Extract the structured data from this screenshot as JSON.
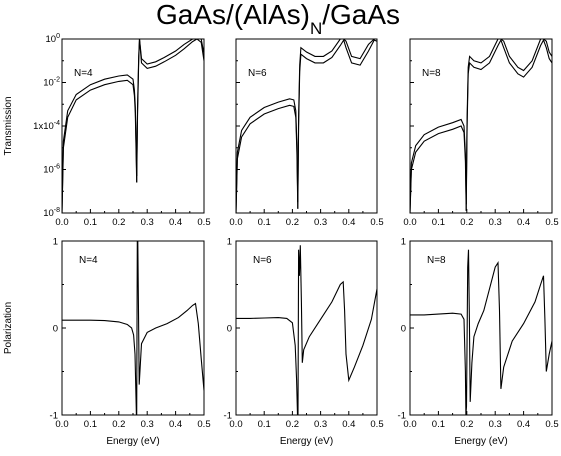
{
  "title": {
    "main": "GaAs/(AlAs)",
    "sub": "N",
    "tail": "/GaAs"
  },
  "chart_data": [
    {
      "type": "line",
      "row": "transmission",
      "label": "N=4",
      "xlim": [
        0,
        0.5
      ],
      "ylim_log10": [
        -8,
        0
      ],
      "yscale": "log",
      "xticks": [
        "0.0",
        "0.1",
        "0.2",
        "0.3",
        "0.4",
        "0.5"
      ],
      "yticks": [
        {
          "exp": 0,
          "label": "10^0"
        },
        {
          "exp": -2,
          "label": "10^-2"
        },
        {
          "exp": -4,
          "label": "1x10^-4"
        },
        {
          "exp": -6,
          "label": "10^-6"
        },
        {
          "exp": -8,
          "label": "10^-8"
        }
      ],
      "ylabel": "Transmission",
      "xlabel": "",
      "series": [
        {
          "x": [
            0.0,
            0.005,
            0.02,
            0.05,
            0.1,
            0.15,
            0.2,
            0.23,
            0.25,
            0.255,
            0.258,
            0.261,
            0.263
          ],
          "log10y": [
            -8,
            -5.0,
            -3.6,
            -2.8,
            -2.35,
            -2.1,
            -1.95,
            -1.9,
            -2.1,
            -2.6,
            -3.4,
            -5.2,
            -6.6
          ]
        },
        {
          "x": [
            0.0,
            0.005,
            0.02,
            0.05,
            0.1,
            0.15,
            0.2,
            0.23,
            0.25,
            0.255,
            0.258,
            0.261,
            0.263
          ],
          "log10y": [
            -8,
            -4.7,
            -3.3,
            -2.55,
            -2.1,
            -1.85,
            -1.7,
            -1.65,
            -1.85,
            -2.35,
            -3.1,
            -4.9,
            -6.3
          ]
        },
        {
          "x": [
            0.263,
            0.266,
            0.27,
            0.273,
            0.28,
            0.3,
            0.33,
            0.36,
            0.4,
            0.43,
            0.46,
            0.475,
            0.49,
            0.5
          ],
          "log10y": [
            -6.6,
            -3.6,
            -1.0,
            0,
            -1.1,
            -1.35,
            -1.25,
            -1.05,
            -0.75,
            -0.45,
            -0.12,
            0,
            -0.15,
            -1.0
          ]
        },
        {
          "x": [
            0.263,
            0.266,
            0.27,
            0.273,
            0.28,
            0.3,
            0.33,
            0.36,
            0.4,
            0.43,
            0.46,
            0.475,
            0.49,
            0.5
          ],
          "log10y": [
            -6.3,
            -3.2,
            -0.8,
            0,
            -0.9,
            -1.15,
            -1.05,
            -0.85,
            -0.55,
            -0.25,
            0,
            0,
            0,
            -0.7
          ]
        }
      ]
    },
    {
      "type": "line",
      "row": "transmission",
      "label": "N=6",
      "xlim": [
        0,
        0.5
      ],
      "ylim_log10": [
        -8,
        0
      ],
      "yscale": "log",
      "xticks": [
        "0.0",
        "0.1",
        "0.2",
        "0.3",
        "0.4",
        "0.5"
      ],
      "series": [
        {
          "x": [
            0.0,
            0.005,
            0.02,
            0.05,
            0.1,
            0.15,
            0.19,
            0.205,
            0.212,
            0.216,
            0.219
          ],
          "log10y": [
            -8,
            -5.5,
            -4.5,
            -3.9,
            -3.45,
            -3.2,
            -3.05,
            -3.1,
            -3.6,
            -5.2,
            -7.8
          ]
        },
        {
          "x": [
            0.0,
            0.005,
            0.02,
            0.05,
            0.1,
            0.15,
            0.19,
            0.205,
            0.212,
            0.216,
            0.219
          ],
          "log10y": [
            -8,
            -5.2,
            -4.2,
            -3.6,
            -3.15,
            -2.9,
            -2.75,
            -2.8,
            -3.3,
            -4.9,
            -7.5
          ]
        },
        {
          "x": [
            0.219,
            0.222,
            0.226,
            0.23,
            0.25,
            0.28,
            0.31,
            0.34,
            0.37,
            0.382,
            0.39,
            0.41,
            0.44,
            0.47,
            0.49,
            0.5
          ],
          "log10y": [
            -7.8,
            -4.0,
            -1.5,
            -0.7,
            -0.9,
            -1.1,
            -1.1,
            -0.85,
            -0.3,
            -0.05,
            -0.4,
            -1.1,
            -1.2,
            -0.55,
            -0.05,
            -0.1
          ]
        },
        {
          "x": [
            0.219,
            0.222,
            0.226,
            0.23,
            0.25,
            0.28,
            0.31,
            0.34,
            0.37,
            0.382,
            0.39,
            0.41,
            0.44,
            0.47,
            0.49,
            0.5
          ],
          "log10y": [
            -7.5,
            -3.6,
            -1.2,
            -0.4,
            -0.6,
            -0.8,
            -0.8,
            -0.55,
            0,
            0,
            -0.1,
            -0.8,
            -0.9,
            -0.25,
            0,
            0
          ]
        }
      ]
    },
    {
      "type": "line",
      "row": "transmission",
      "label": "N=8",
      "xlim": [
        0,
        0.5
      ],
      "ylim_log10": [
        -8,
        0
      ],
      "yscale": "log",
      "xticks": [
        "0.0",
        "0.1",
        "0.2",
        "0.3",
        "0.4",
        "0.5"
      ],
      "series": [
        {
          "x": [
            0.0,
            0.005,
            0.02,
            0.05,
            0.1,
            0.15,
            0.18,
            0.19,
            0.195,
            0.198
          ],
          "log10y": [
            -8,
            -6.0,
            -5.2,
            -4.7,
            -4.35,
            -4.15,
            -4.0,
            -4.3,
            -5.6,
            -7.9
          ]
        },
        {
          "x": [
            0.0,
            0.005,
            0.02,
            0.05,
            0.1,
            0.15,
            0.18,
            0.19,
            0.195,
            0.198
          ],
          "log10y": [
            -8,
            -5.7,
            -4.9,
            -4.4,
            -4.05,
            -3.85,
            -3.7,
            -4.0,
            -5.3,
            -7.6
          ]
        },
        {
          "x": [
            0.198,
            0.201,
            0.205,
            0.21,
            0.225,
            0.25,
            0.28,
            0.31,
            0.32,
            0.33,
            0.35,
            0.38,
            0.4,
            0.43,
            0.46,
            0.47,
            0.48,
            0.49,
            0.5
          ],
          "log10y": [
            -7.9,
            -4.0,
            -1.6,
            -1.1,
            -1.3,
            -1.4,
            -1.1,
            -0.3,
            -0.05,
            -0.4,
            -1.1,
            -1.6,
            -1.75,
            -1.3,
            -0.3,
            -0.05,
            -0.4,
            -0.9,
            -1.1
          ]
        },
        {
          "x": [
            0.198,
            0.201,
            0.205,
            0.21,
            0.225,
            0.25,
            0.28,
            0.31,
            0.32,
            0.33,
            0.35,
            0.38,
            0.4,
            0.43,
            0.46,
            0.47,
            0.48,
            0.49,
            0.5
          ],
          "log10y": [
            -7.6,
            -3.6,
            -1.3,
            -0.8,
            -1.0,
            -1.1,
            -0.8,
            0,
            0,
            -0.1,
            -0.8,
            -1.3,
            -1.45,
            -1.0,
            0,
            0,
            -0.1,
            -0.6,
            -0.8
          ]
        }
      ]
    },
    {
      "type": "line",
      "row": "polarization",
      "label": "N=4",
      "xlim": [
        0,
        0.5
      ],
      "ylim": [
        -1,
        1
      ],
      "xticks": [
        "0.0",
        "0.1",
        "0.2",
        "0.3",
        "0.4",
        "0.5"
      ],
      "yticks": [
        {
          "v": 1,
          "label": "1"
        },
        {
          "v": 0,
          "label": "0"
        },
        {
          "v": -1,
          "label": "-1"
        }
      ],
      "ylabel": "Polarization",
      "xlabel": "Energy (eV)",
      "series": [
        {
          "x": [
            0.0,
            0.05,
            0.1,
            0.15,
            0.2,
            0.23,
            0.245,
            0.252,
            0.257,
            0.26,
            0.262,
            0.263,
            0.265,
            0.267,
            0.269,
            0.272,
            0.28,
            0.3,
            0.33,
            0.37,
            0.41,
            0.44,
            0.46,
            0.47,
            0.48,
            0.49,
            0.5
          ],
          "y": [
            0.09,
            0.09,
            0.09,
            0.085,
            0.07,
            0.04,
            0.0,
            -0.08,
            -0.3,
            -0.7,
            -1.0,
            -1.0,
            1.0,
            1.0,
            0.3,
            -0.65,
            -0.18,
            -0.05,
            0.0,
            0.05,
            0.12,
            0.2,
            0.26,
            0.28,
            0.05,
            -0.35,
            -0.72
          ]
        }
      ]
    },
    {
      "type": "line",
      "row": "polarization",
      "label": "N=6",
      "xlim": [
        0,
        0.5
      ],
      "ylim": [
        -1,
        1
      ],
      "xticks": [
        "0.0",
        "0.1",
        "0.2",
        "0.3",
        "0.4",
        "0.5"
      ],
      "xlabel": "Energy (eV)",
      "series": [
        {
          "x": [
            0.0,
            0.05,
            0.1,
            0.15,
            0.18,
            0.2,
            0.21,
            0.215,
            0.218,
            0.22,
            0.222,
            0.225,
            0.228,
            0.232,
            0.235,
            0.24,
            0.26,
            0.3,
            0.34,
            0.37,
            0.38,
            0.385,
            0.39,
            0.4,
            0.42,
            0.45,
            0.48,
            0.5
          ],
          "y": [
            0.11,
            0.11,
            0.115,
            0.12,
            0.11,
            0.06,
            -0.2,
            -0.6,
            -1.0,
            -1.0,
            0.9,
            0.6,
            0.95,
            0.3,
            -0.4,
            -0.25,
            -0.1,
            0.1,
            0.3,
            0.5,
            0.53,
            0.2,
            -0.3,
            -0.6,
            -0.45,
            -0.2,
            0.1,
            0.45
          ]
        }
      ]
    },
    {
      "type": "line",
      "row": "polarization",
      "label": "N=8",
      "xlim": [
        0,
        0.5
      ],
      "ylim": [
        -1,
        1
      ],
      "xticks": [
        "0.0",
        "0.1",
        "0.2",
        "0.3",
        "0.4",
        "0.5"
      ],
      "xlabel": "Energy (eV)",
      "series": [
        {
          "x": [
            0.0,
            0.05,
            0.1,
            0.15,
            0.18,
            0.19,
            0.195,
            0.197,
            0.199,
            0.203,
            0.206,
            0.209,
            0.212,
            0.218,
            0.225,
            0.24,
            0.26,
            0.28,
            0.3,
            0.31,
            0.315,
            0.32,
            0.33,
            0.36,
            0.4,
            0.44,
            0.46,
            0.47,
            0.475,
            0.48,
            0.49,
            0.5
          ],
          "y": [
            0.15,
            0.15,
            0.16,
            0.17,
            0.16,
            0.1,
            -0.5,
            -1.0,
            -0.9,
            0.7,
            0.9,
            0.1,
            -0.85,
            -0.4,
            -0.1,
            0.05,
            0.2,
            0.45,
            0.7,
            0.75,
            0.2,
            -0.7,
            -0.45,
            -0.15,
            0.05,
            0.3,
            0.5,
            0.6,
            0.1,
            -0.5,
            -0.3,
            -0.15
          ]
        }
      ]
    }
  ]
}
